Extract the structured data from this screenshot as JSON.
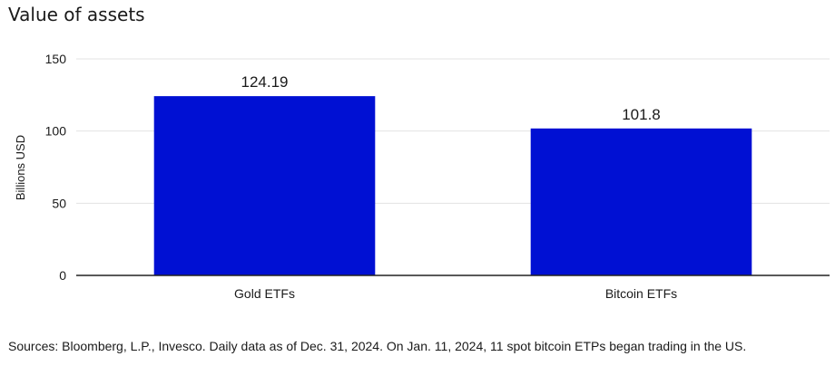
{
  "chart_data": {
    "type": "bar",
    "title": "Value of assets",
    "categories": [
      "Gold ETFs",
      "Bitcoin ETFs"
    ],
    "values": [
      124.19,
      101.8
    ],
    "data_labels": [
      "124.19",
      "101.8"
    ],
    "xlabel": "",
    "ylabel": "Billions USD",
    "ylim": [
      0,
      150
    ],
    "yticks": [
      0,
      50,
      100,
      150
    ],
    "grid": true,
    "bar_color": "#0010d3"
  },
  "footer": {
    "source": "Sources: Bloomberg, L.P., Invesco. Daily data as of Dec. 31, 2024. On Jan. 11, 2024, 11 spot bitcoin ETPs began trading in the US."
  }
}
